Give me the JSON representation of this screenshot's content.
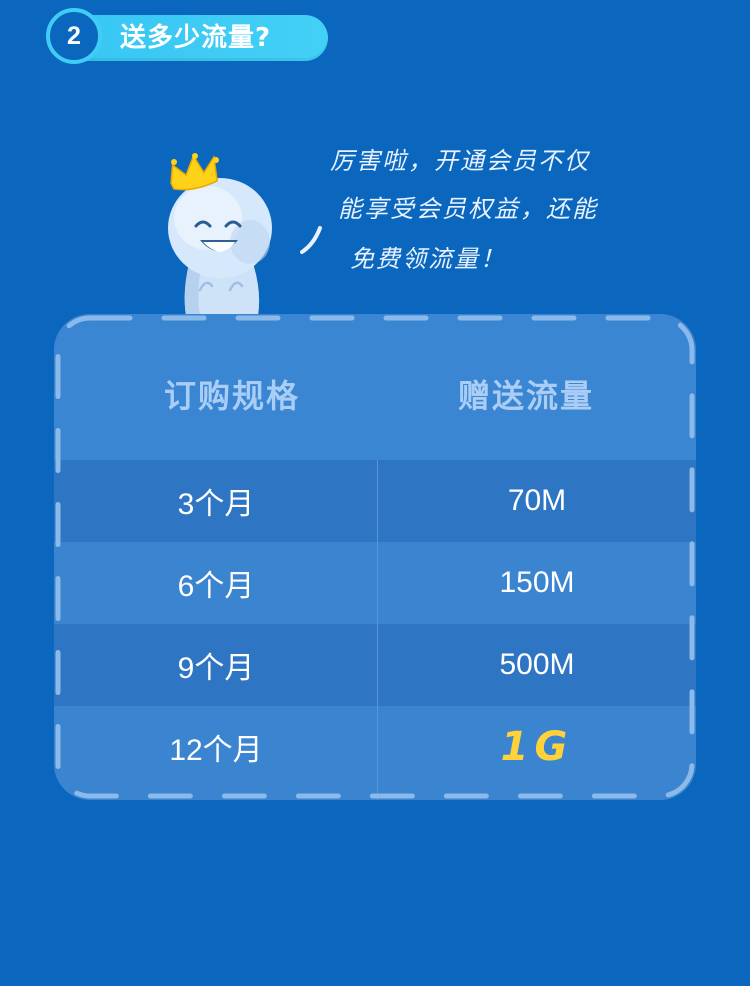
{
  "header": {
    "number": "2",
    "title": "送多少流量?"
  },
  "speech": {
    "line1": "厉害啦，开通会员不仅",
    "line2": "能享受会员权益，还能",
    "line3": "免费领流量！"
  },
  "table": {
    "headers": [
      "订购规格",
      "赠送流量"
    ],
    "rows": [
      [
        "3个月",
        "70M"
      ],
      [
        "6个月",
        "150M"
      ],
      [
        "9个月",
        "500M"
      ],
      [
        "12个月",
        "1G"
      ]
    ]
  },
  "colors": {
    "background": "#0b66bd",
    "header_pill": "#3fcdf6",
    "highlight_value": "#ffd23a",
    "header_text": "#a9cdf5"
  },
  "icons": {
    "mascot": "crowned-smiling-mascot-icon"
  }
}
